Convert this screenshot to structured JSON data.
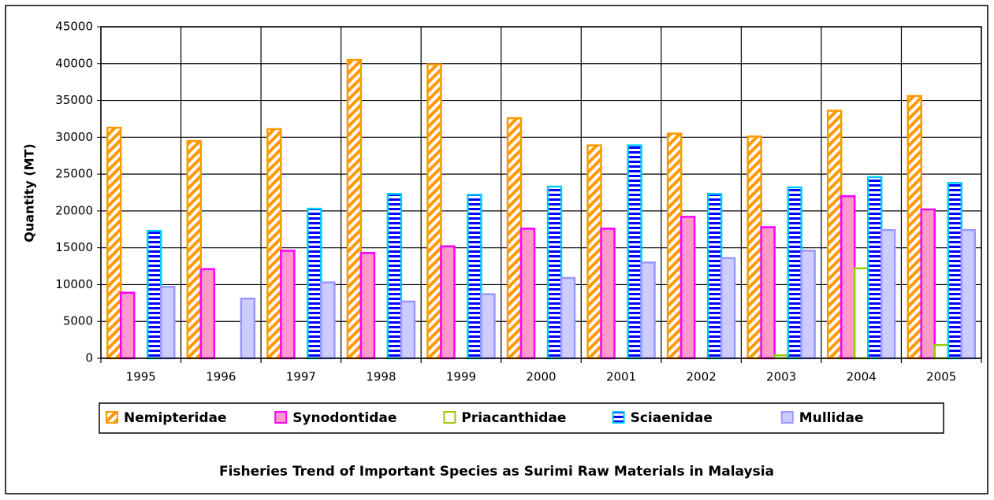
{
  "chart_data": {
    "type": "bar",
    "title": "Fisheries Trend of Important Species as Surimi Raw Materials in Malaysia",
    "y_label": "Quantity (MT)",
    "categories": [
      "1995",
      "1996",
      "1997",
      "1998",
      "1999",
      "2000",
      "2001",
      "2002",
      "2003",
      "2004",
      "2005"
    ],
    "series": [
      {
        "name": "Nemipteridae",
        "color": "#ff9900",
        "border": "#ff9900",
        "pattern": "diagonal",
        "values": [
          31300,
          29500,
          31100,
          40500,
          39900,
          32600,
          28900,
          30500,
          30100,
          33600,
          35600
        ]
      },
      {
        "name": "Synodontidae",
        "color": "#ff99cc",
        "border": "#ff00ff",
        "pattern": "solid",
        "values": [
          8900,
          12100,
          14600,
          14300,
          15200,
          17600,
          17600,
          19200,
          17800,
          22000,
          20200
        ]
      },
      {
        "name": "Priacanthidae",
        "color": "#ffffff",
        "border": "#99cc00",
        "pattern": "solid",
        "values": [
          null,
          null,
          null,
          null,
          null,
          null,
          null,
          null,
          400,
          12200,
          1800
        ]
      },
      {
        "name": "Sciaenidae",
        "color": "#0000ff",
        "border": "#00ccff",
        "pattern": "horizontal",
        "values": [
          17300,
          null,
          20300,
          22300,
          22200,
          23300,
          28900,
          22300,
          23200,
          24600,
          23800
        ]
      },
      {
        "name": "Mullidae",
        "color": "#ccccff",
        "border": "#9999ff",
        "pattern": "solid",
        "values": [
          9700,
          8100,
          10300,
          7700,
          8700,
          10900,
          13000,
          13600,
          14600,
          17400,
          17400
        ]
      }
    ],
    "ylim": [
      0,
      45000
    ],
    "yticks": [
      0,
      5000,
      10000,
      15000,
      20000,
      25000,
      30000,
      35000,
      40000,
      45000
    ],
    "grid": true,
    "legend": "bottom"
  }
}
